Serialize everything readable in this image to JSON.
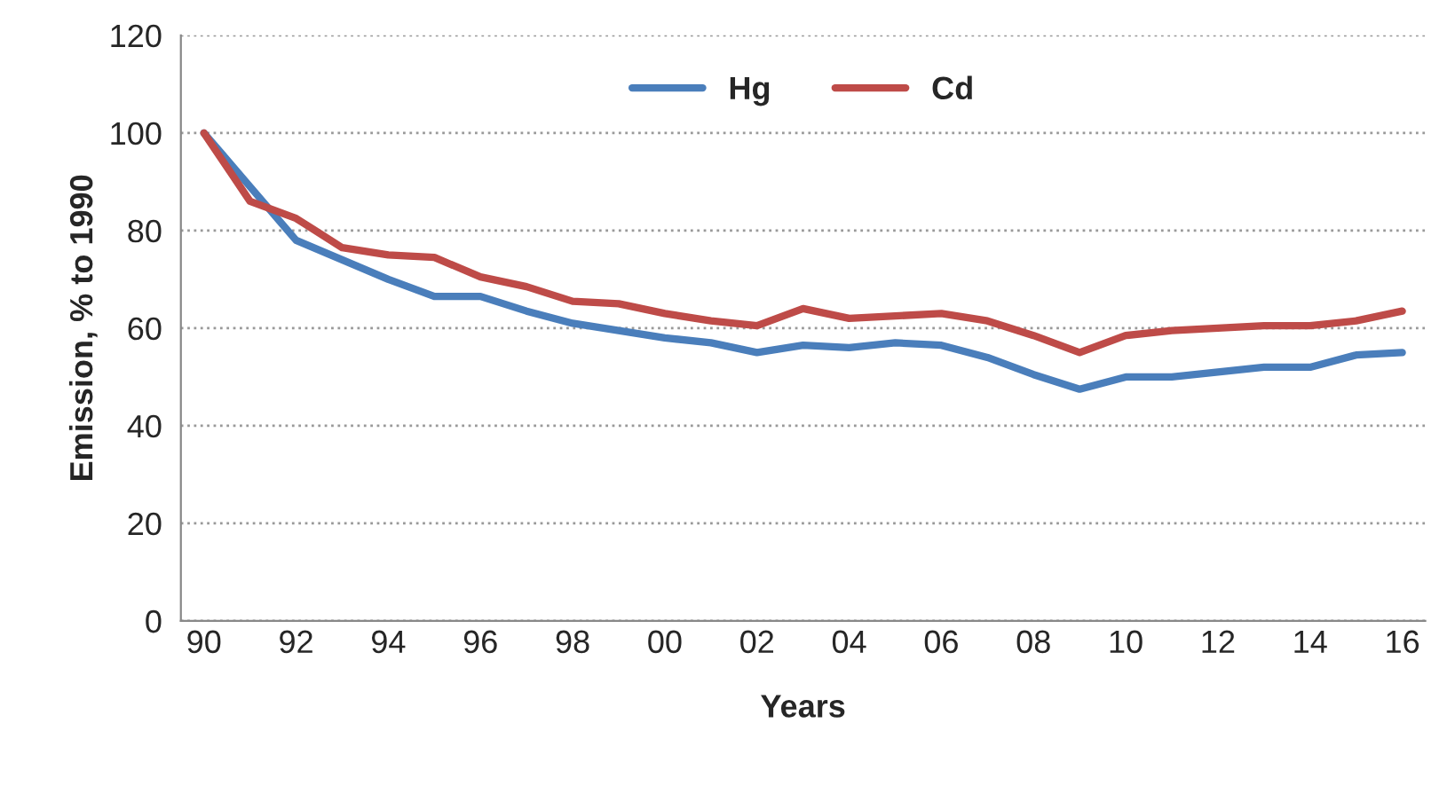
{
  "chart_data": {
    "type": "line",
    "xlabel": "Years",
    "ylabel": "Emission, % to 1990",
    "categories": [
      "90",
      null,
      "92",
      null,
      "94",
      null,
      "96",
      null,
      "98",
      null,
      "00",
      null,
      "02",
      null,
      "04",
      null,
      "06",
      null,
      "08",
      null,
      "10",
      null,
      "12",
      null,
      "14",
      null,
      "16"
    ],
    "series": [
      {
        "name": "Hg",
        "color": "#4a7ebb",
        "values": [
          100,
          89,
          78,
          74,
          70,
          66.5,
          66.5,
          63.5,
          61,
          59.5,
          58,
          57,
          55,
          56.5,
          56,
          57,
          56.5,
          54,
          50.5,
          47.5,
          50,
          50,
          51,
          52,
          52,
          54.5,
          55
        ]
      },
      {
        "name": "Cd",
        "color": "#be4b48",
        "values": [
          100,
          86,
          82.5,
          76.5,
          75,
          74.5,
          70.5,
          68.5,
          65.5,
          65,
          63,
          61.5,
          60.5,
          64,
          62,
          62.5,
          63,
          61.5,
          58.5,
          55,
          58.5,
          59.5,
          60,
          60.5,
          60.5,
          61.5,
          63.5
        ]
      }
    ],
    "ylim": [
      0,
      120
    ],
    "yticks": [
      0,
      20,
      40,
      60,
      80,
      100,
      120
    ],
    "grid": "y",
    "legend": "top",
    "marker": "none",
    "line_style": "solid"
  }
}
